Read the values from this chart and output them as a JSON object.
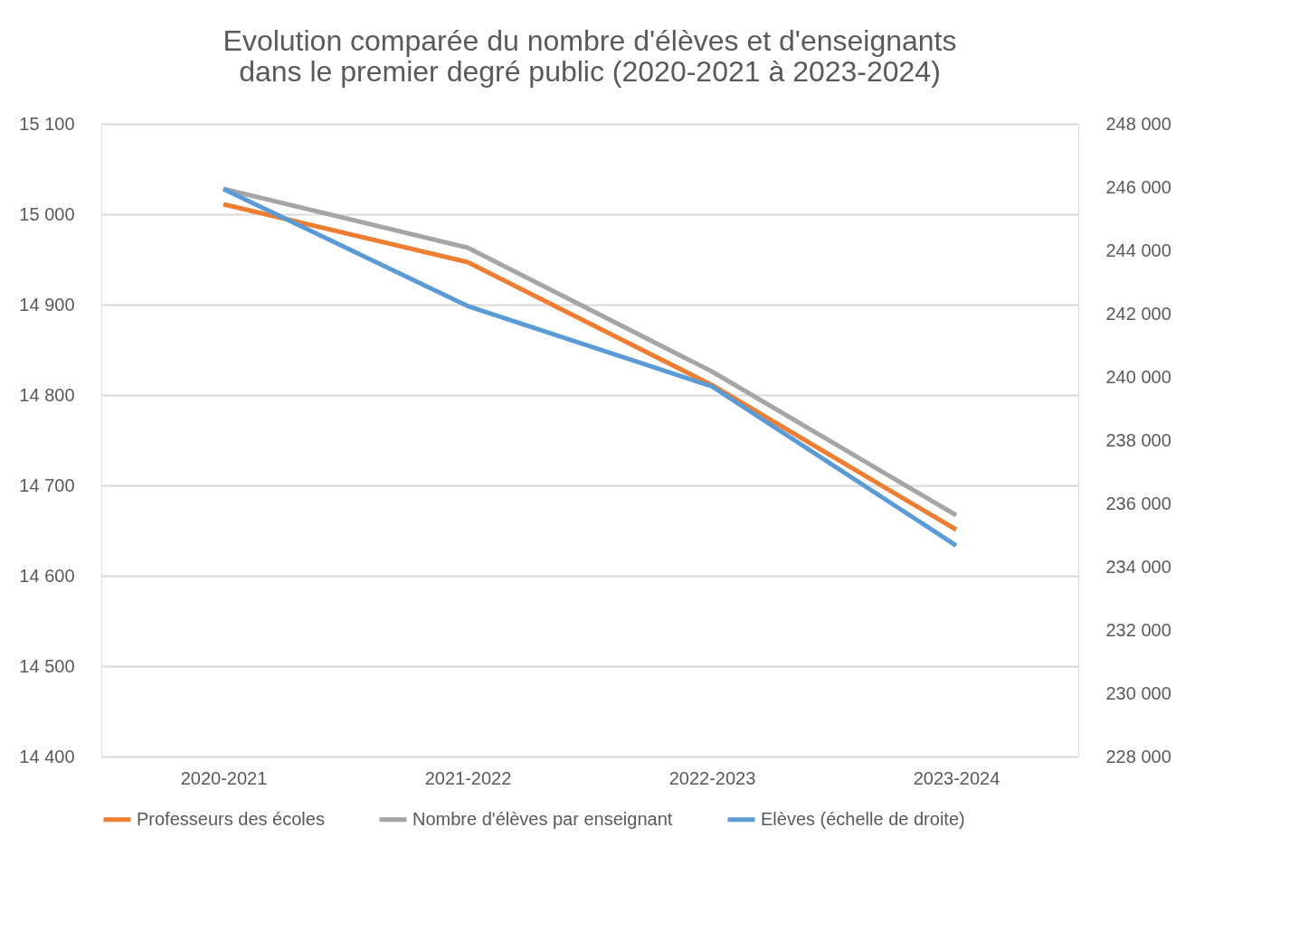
{
  "chart_data": {
    "type": "line",
    "title": "Evolution comparée du nombre d'élèves et d'enseignants\ndans le premier degré public (2020-2021 à 2023-2024)",
    "categories": [
      "2020-2021",
      "2021-2022",
      "2022-2023",
      "2023-2024"
    ],
    "series": [
      {
        "name": "Professeurs des écoles",
        "color": "#ed7d31",
        "values": [
          15011,
          14947,
          14811,
          14651
        ]
      },
      {
        "name": "Nombre d'élèves par enseignant",
        "color": "#a5a5a5",
        "values": [
          15028,
          14963,
          14826,
          14667
        ]
      },
      {
        "name": "Elèves (échelle de droite)",
        "color": "#5b9bd5",
        "axis": "y2",
        "values": [
          245940,
          242240,
          239700,
          234670
        ]
      }
    ],
    "ylim": [
      14400,
      15100
    ],
    "yticks": [
      {
        "value": 14400,
        "label": "14 400"
      },
      {
        "value": 14500,
        "label": "14 500"
      },
      {
        "value": 14600,
        "label": "14 600"
      },
      {
        "value": 14700,
        "label": "14 700"
      },
      {
        "value": 14800,
        "label": "14 800"
      },
      {
        "value": 14900,
        "label": "14 900"
      },
      {
        "value": 15000,
        "label": "15 000"
      },
      {
        "value": 15100,
        "label": "15 100"
      }
    ],
    "y2lim": [
      228000,
      248000
    ],
    "y2ticks": [
      {
        "value": 228000,
        "label": "228 000"
      },
      {
        "value": 230000,
        "label": "230 000"
      },
      {
        "value": 232000,
        "label": "232 000"
      },
      {
        "value": 234000,
        "label": "234 000"
      },
      {
        "value": 236000,
        "label": "236 000"
      },
      {
        "value": 238000,
        "label": "238 000"
      },
      {
        "value": 240000,
        "label": "240 000"
      },
      {
        "value": 242000,
        "label": "242 000"
      },
      {
        "value": 244000,
        "label": "244 000"
      },
      {
        "value": 246000,
        "label": "246 000"
      },
      {
        "value": 248000,
        "label": "248 000"
      }
    ],
    "grid": "y",
    "legend": "bottom",
    "marker": "none",
    "line_style": "solid"
  }
}
